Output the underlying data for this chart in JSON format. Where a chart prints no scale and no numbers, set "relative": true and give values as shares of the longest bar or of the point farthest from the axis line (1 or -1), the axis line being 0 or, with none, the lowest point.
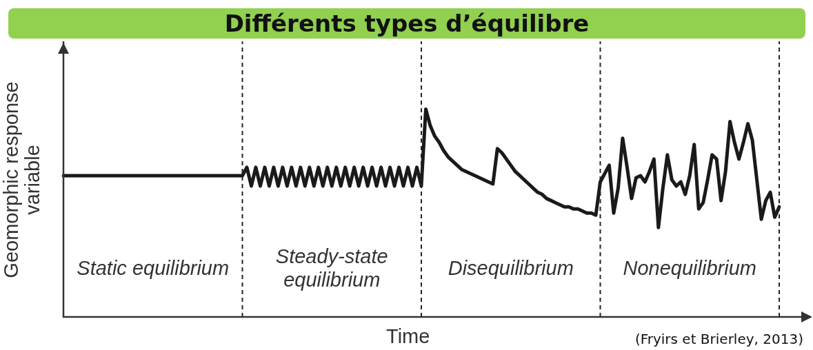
{
  "chart_data": {
    "type": "line",
    "title": "Différents types d’équilibre",
    "xlabel": "Time",
    "ylabel": "Geomorphic response variable",
    "relative": true,
    "legend": false,
    "marker": "none",
    "line_style": "solid",
    "categories": [
      null,
      null,
      null,
      null,
      null,
      null,
      null,
      null,
      null,
      null,
      null,
      null,
      null,
      null,
      null,
      null,
      null,
      null,
      null,
      null,
      null,
      null,
      null,
      null,
      null,
      null,
      null,
      null,
      null,
      null,
      null,
      null,
      null,
      null,
      null,
      null,
      null,
      null,
      null,
      null,
      null,
      null,
      null,
      null,
      null,
      null,
      null,
      null,
      null,
      null,
      null,
      null,
      null,
      null,
      null,
      null,
      null,
      null,
      null,
      null,
      null,
      null,
      null,
      null,
      null,
      null,
      null,
      null,
      null,
      null,
      null,
      null,
      null,
      null,
      null,
      null,
      null,
      null,
      null,
      null,
      null,
      null,
      null,
      null,
      null,
      null,
      null,
      null,
      null,
      null,
      null,
      null,
      null,
      null,
      null,
      null,
      null,
      null,
      null,
      null,
      null,
      null,
      null,
      null,
      null,
      null,
      null,
      null,
      null,
      null,
      null,
      null,
      null,
      null,
      null,
      null,
      null,
      null,
      null,
      null,
      null,
      null,
      null,
      null,
      null,
      null,
      null,
      null,
      null,
      null,
      null,
      null,
      null,
      null,
      null,
      null,
      null,
      null,
      null,
      null,
      null,
      null,
      null,
      null,
      null,
      null,
      null,
      null,
      null,
      null,
      null,
      null,
      null,
      null,
      null,
      null,
      null,
      null,
      null,
      null,
      null
    ],
    "series": [
      {
        "color": "#1a1a1a",
        "values": [
          0.68,
          0.68,
          0.68,
          0.68,
          0.68,
          0.68,
          0.68,
          0.68,
          0.68,
          0.68,
          0.68,
          0.68,
          0.68,
          0.68,
          0.68,
          0.68,
          0.68,
          0.68,
          0.68,
          0.68,
          0.68,
          0.68,
          0.68,
          0.68,
          0.68,
          0.68,
          0.68,
          0.68,
          0.68,
          0.68,
          0.68,
          0.68,
          0.68,
          0.68,
          0.68,
          0.68,
          0.68,
          0.68,
          0.68,
          0.68,
          0.68,
          0.72,
          0.63,
          0.72,
          0.63,
          0.72,
          0.63,
          0.72,
          0.63,
          0.72,
          0.63,
          0.72,
          0.63,
          0.72,
          0.63,
          0.72,
          0.63,
          0.72,
          0.63,
          0.72,
          0.63,
          0.72,
          0.63,
          0.72,
          0.63,
          0.72,
          0.63,
          0.72,
          0.63,
          0.72,
          0.63,
          0.72,
          0.63,
          0.72,
          0.63,
          0.72,
          0.63,
          0.72,
          0.63,
          0.72,
          0.63,
          1.0,
          0.92,
          0.87,
          0.84,
          0.8,
          0.77,
          0.75,
          0.73,
          0.71,
          0.7,
          0.69,
          0.68,
          0.67,
          0.66,
          0.65,
          0.64,
          0.81,
          0.79,
          0.76,
          0.73,
          0.7,
          0.68,
          0.66,
          0.64,
          0.62,
          0.6,
          0.59,
          0.57,
          0.56,
          0.55,
          0.54,
          0.53,
          0.53,
          0.52,
          0.52,
          0.51,
          0.5,
          0.5,
          0.49,
          0.65,
          0.69,
          0.73,
          0.5,
          0.62,
          0.86,
          0.72,
          0.57,
          0.67,
          0.68,
          0.65,
          0.7,
          0.76,
          0.43,
          0.62,
          0.78,
          0.66,
          0.63,
          0.65,
          0.59,
          0.68,
          0.83,
          0.52,
          0.55,
          0.66,
          0.78,
          0.76,
          0.56,
          0.7,
          0.94,
          0.84,
          0.76,
          0.84,
          0.93,
          0.85,
          0.66,
          0.47,
          0.56,
          0.6,
          0.48,
          0.53
        ]
      }
    ],
    "annotations": [
      "Static equilibrium",
      "Steady-state equilibrium",
      "Disequilibrium",
      "Nonequilibrium",
      "(Fryirs et Brierley, 2013)"
    ]
  }
}
